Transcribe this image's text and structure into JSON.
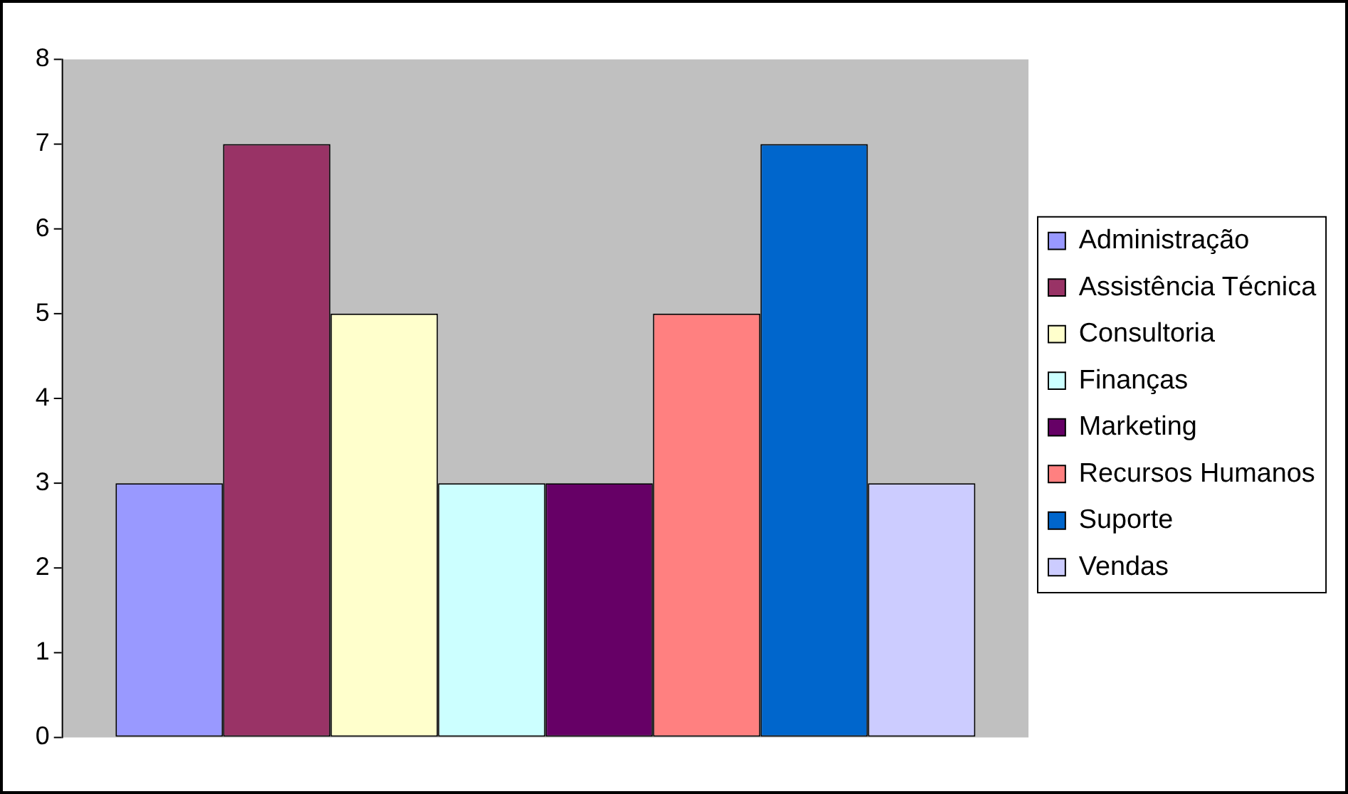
{
  "chart_data": {
    "type": "bar",
    "categories": [
      null
    ],
    "series": [
      {
        "name": "Administração",
        "color": "#9999ff",
        "values": [
          3
        ]
      },
      {
        "name": "Assistência Técnica",
        "color": "#993366",
        "values": [
          7
        ]
      },
      {
        "name": "Consultoria",
        "color": "#ffffcc",
        "values": [
          5
        ]
      },
      {
        "name": "Finanças",
        "color": "#ccffff",
        "values": [
          3
        ]
      },
      {
        "name": "Marketing",
        "color": "#660066",
        "values": [
          3
        ]
      },
      {
        "name": "Recursos Humanos",
        "color": "#ff8080",
        "values": [
          5
        ]
      },
      {
        "name": "Suporte",
        "color": "#0066cc",
        "values": [
          7
        ]
      },
      {
        "name": "Vendas",
        "color": "#ccccff",
        "values": [
          3
        ]
      }
    ],
    "ylim": [
      0,
      8
    ],
    "yticks": [
      0,
      1,
      2,
      3,
      4,
      5,
      6,
      7,
      8
    ],
    "grid": false,
    "legend": "right"
  }
}
